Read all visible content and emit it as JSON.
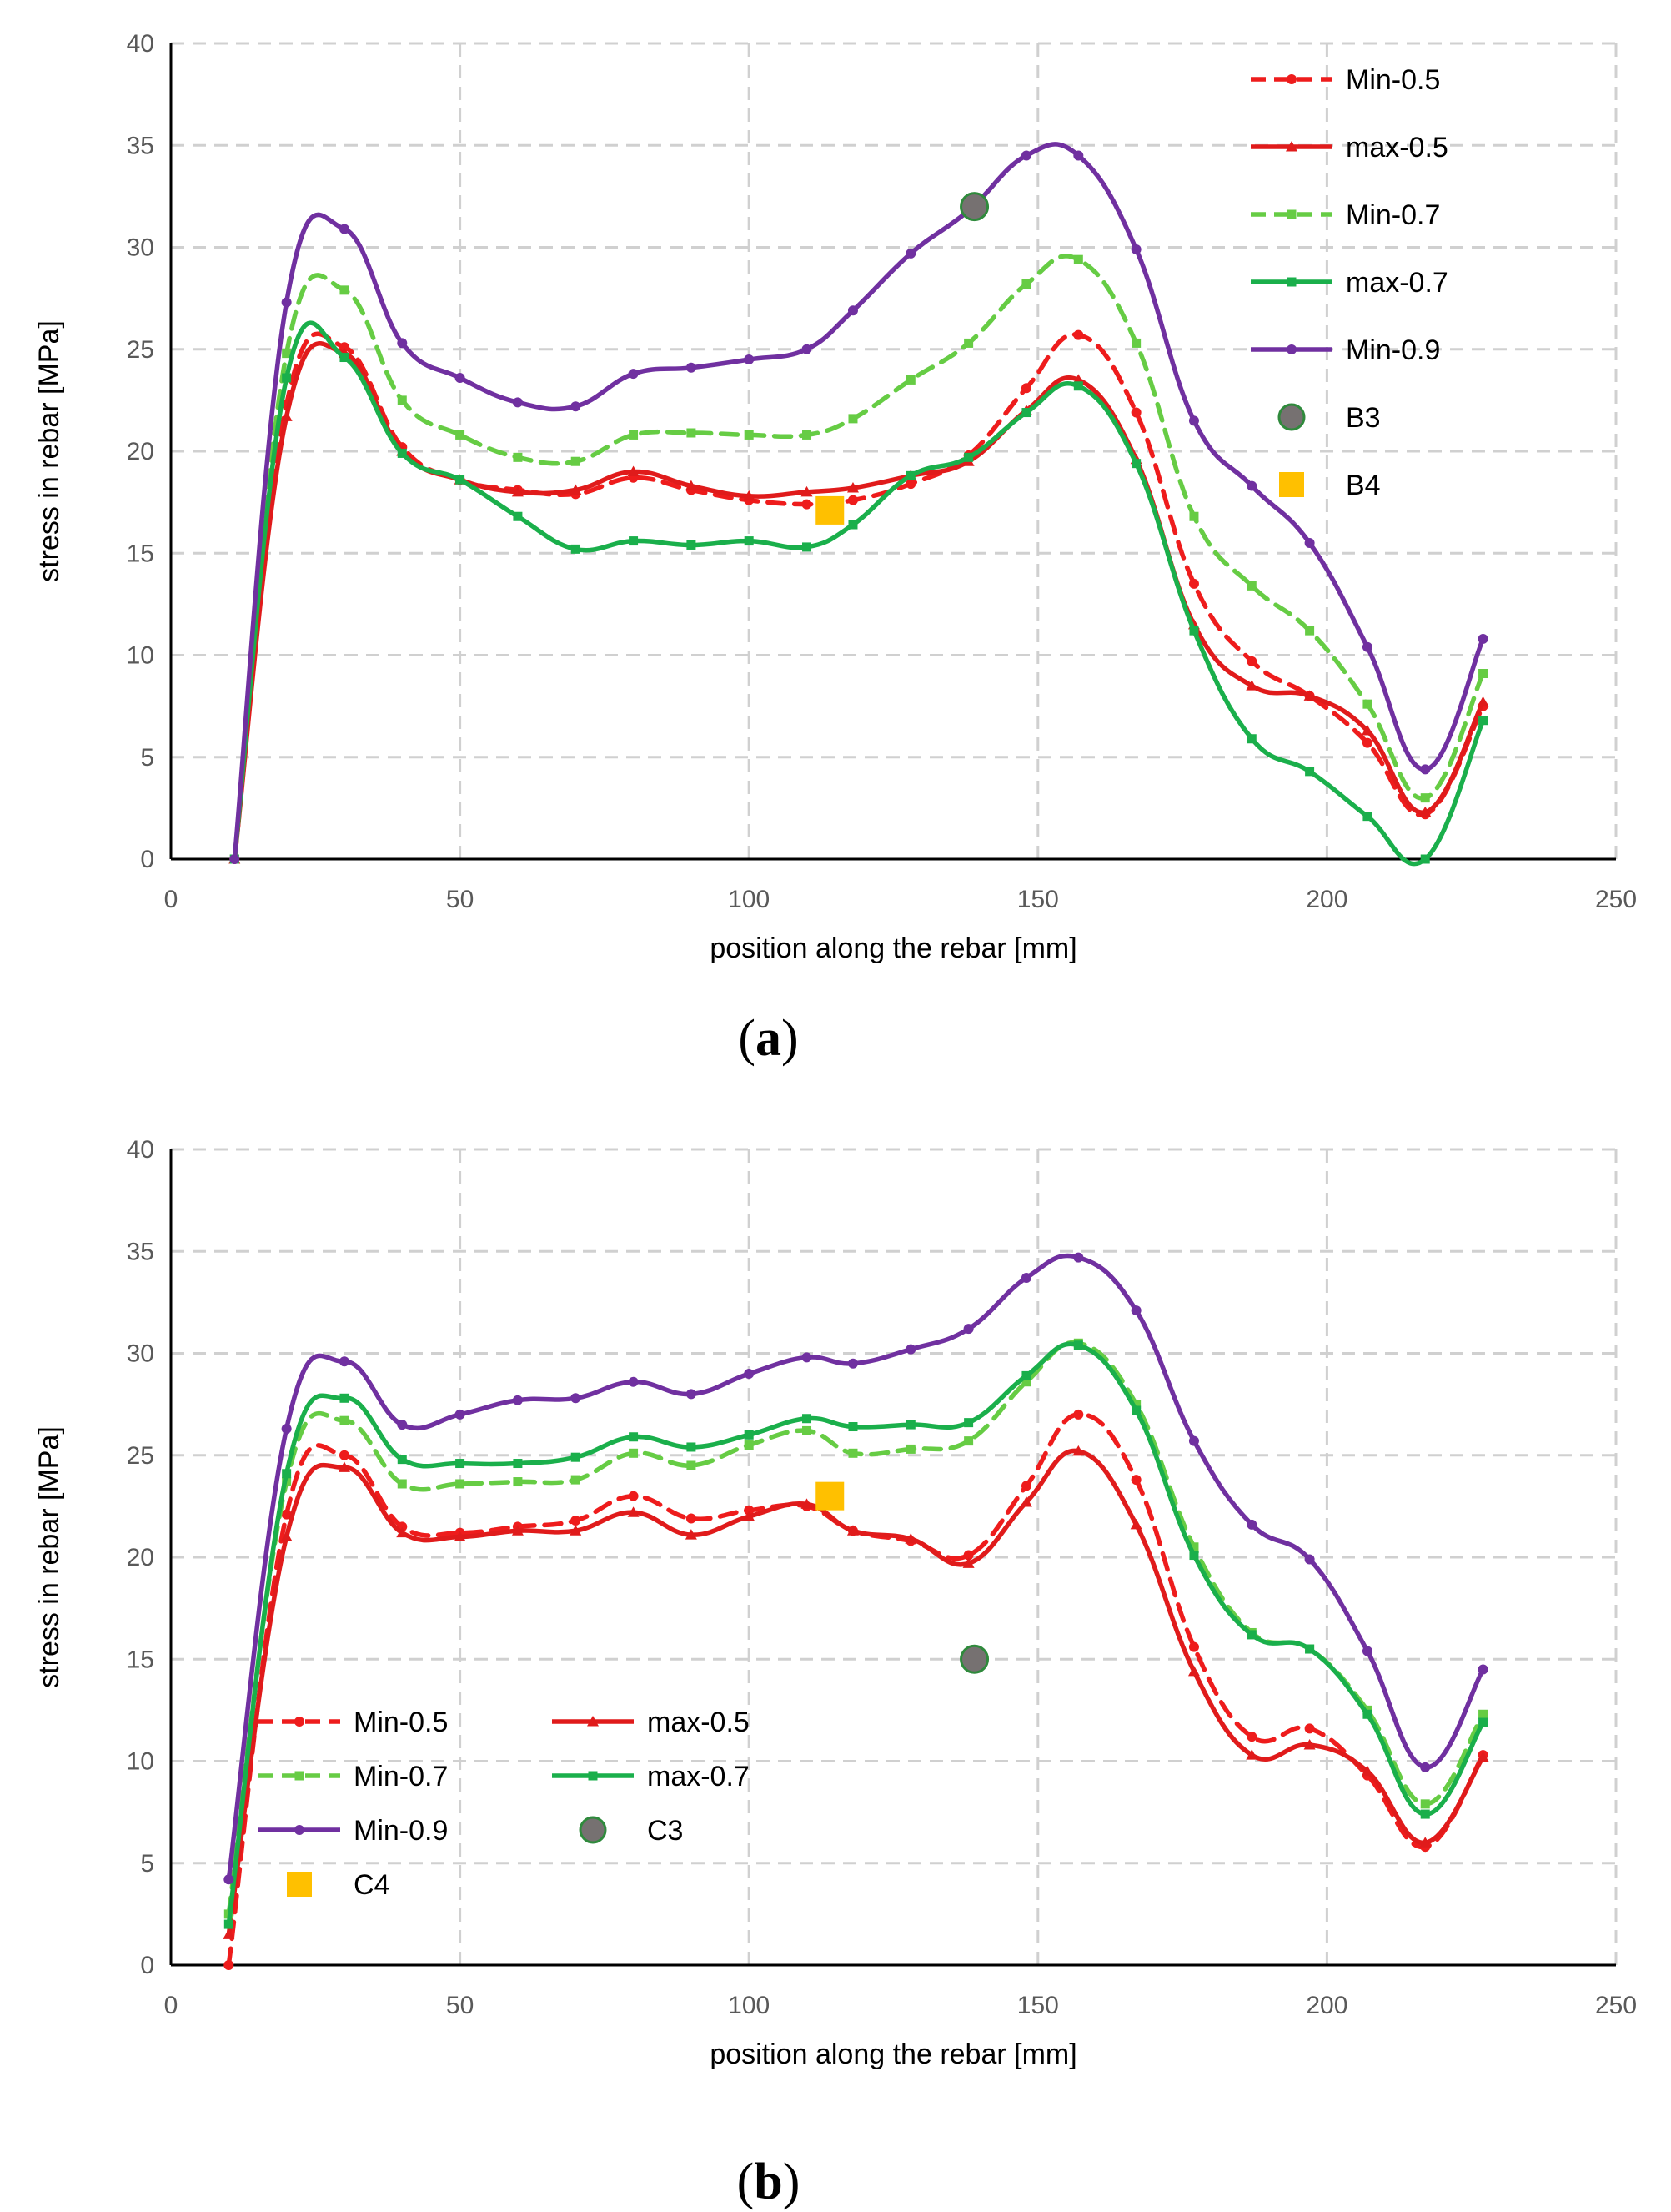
{
  "chart_data": [
    {
      "type": "line",
      "panel_label": "(a)",
      "xlabel": "position along the rebar [mm]",
      "ylabel": "stress in rebar [MPa]",
      "xlim": [
        0,
        250
      ],
      "ylim": [
        0,
        40
      ],
      "xticks": [
        0,
        50,
        100,
        150,
        200,
        250
      ],
      "yticks": [
        0,
        5,
        10,
        15,
        20,
        25,
        30,
        35,
        40
      ],
      "grid": true,
      "legend_placement": "top-right",
      "legend_columns": 1,
      "series": [
        {
          "name": "Min-0.5",
          "color": "#ee1c1c",
          "dash": true,
          "marker": "circle",
          "x": [
            11,
            20,
            30,
            40,
            50,
            60,
            70,
            80,
            90,
            100,
            110,
            118,
            128,
            138,
            148,
            157,
            167,
            177,
            187,
            197,
            207,
            217,
            227
          ],
          "y": [
            0,
            22.3,
            25.1,
            20.2,
            18.6,
            18.1,
            17.9,
            18.7,
            18.1,
            17.6,
            17.4,
            17.6,
            18.4,
            19.8,
            23.1,
            25.7,
            21.9,
            13.5,
            9.7,
            8.0,
            5.7,
            2.2,
            7.5
          ]
        },
        {
          "name": "max-0.5",
          "color": "#e01b1b",
          "dash": false,
          "marker": "triangle",
          "x": [
            11,
            20,
            30,
            40,
            50,
            60,
            70,
            80,
            90,
            100,
            110,
            118,
            128,
            138,
            148,
            157,
            167,
            177,
            187,
            197,
            207,
            217,
            227
          ],
          "y": [
            0,
            21.7,
            24.8,
            20.0,
            18.6,
            18.0,
            18.1,
            19.0,
            18.3,
            17.8,
            18.0,
            18.2,
            18.8,
            19.5,
            22.0,
            23.5,
            19.6,
            11.5,
            8.5,
            8.0,
            6.3,
            2.3,
            7.7
          ]
        },
        {
          "name": "Min-0.7",
          "color": "#66cc44",
          "dash": true,
          "marker": "square",
          "x": [
            11,
            20,
            30,
            40,
            50,
            60,
            70,
            80,
            90,
            100,
            110,
            118,
            128,
            138,
            148,
            157,
            167,
            177,
            187,
            197,
            207,
            217,
            227
          ],
          "y": [
            0,
            24.8,
            27.9,
            22.5,
            20.8,
            19.7,
            19.5,
            20.8,
            20.9,
            20.8,
            20.8,
            21.6,
            23.5,
            25.3,
            28.2,
            29.4,
            25.3,
            16.8,
            13.4,
            11.2,
            7.6,
            3.0,
            9.1
          ]
        },
        {
          "name": "max-0.7",
          "color": "#1aaf4b",
          "dash": false,
          "marker": "square",
          "x": [
            11,
            20,
            30,
            40,
            50,
            60,
            70,
            80,
            90,
            100,
            110,
            118,
            128,
            138,
            148,
            157,
            167,
            177,
            187,
            197,
            207,
            217,
            227
          ],
          "y": [
            0,
            23.6,
            24.6,
            19.9,
            18.6,
            16.8,
            15.2,
            15.6,
            15.4,
            15.6,
            15.3,
            16.4,
            18.8,
            19.7,
            21.9,
            23.2,
            19.4,
            11.2,
            5.9,
            4.3,
            2.1,
            0.0,
            6.8
          ]
        },
        {
          "name": "Min-0.9",
          "color": "#7030a0",
          "dash": false,
          "marker": "circle",
          "x": [
            11,
            20,
            30,
            40,
            50,
            60,
            70,
            80,
            90,
            100,
            110,
            118,
            128,
            138,
            148,
            157,
            167,
            177,
            187,
            197,
            207,
            217,
            227
          ],
          "y": [
            0,
            27.3,
            30.9,
            25.3,
            23.6,
            22.4,
            22.2,
            23.8,
            24.1,
            24.5,
            25.0,
            26.9,
            29.7,
            31.8,
            34.5,
            34.5,
            29.9,
            21.5,
            18.3,
            15.5,
            10.4,
            4.4,
            10.8
          ]
        }
      ],
      "points": [
        {
          "name": "B3",
          "marker": "big-circle",
          "color": "#767171",
          "stroke": "#2f8a3c",
          "x": 139,
          "y": 32.0
        },
        {
          "name": "B4",
          "marker": "big-square",
          "color": "#ffc000",
          "x": 114,
          "y": 17.1
        }
      ]
    },
    {
      "type": "line",
      "panel_label": "(b)",
      "xlabel": "position along the rebar [mm]",
      "ylabel": "stress in rebar [MPa]",
      "xlim": [
        0,
        250
      ],
      "ylim": [
        0,
        40
      ],
      "xticks": [
        0,
        50,
        100,
        150,
        200,
        250
      ],
      "yticks": [
        0,
        5,
        10,
        15,
        20,
        25,
        30,
        35,
        40
      ],
      "grid": true,
      "legend_placement": "bottom-left",
      "legend_columns": 2,
      "series": [
        {
          "name": "Min-0.5",
          "color": "#ee1c1c",
          "dash": true,
          "marker": "circle",
          "x": [
            10,
            20,
            30,
            40,
            50,
            60,
            70,
            80,
            90,
            100,
            110,
            118,
            128,
            138,
            148,
            157,
            167,
            177,
            187,
            197,
            207,
            217,
            227
          ],
          "y": [
            0,
            22.1,
            25.0,
            21.5,
            21.2,
            21.5,
            21.8,
            23.0,
            21.9,
            22.3,
            22.5,
            21.3,
            20.8,
            20.1,
            23.5,
            27.0,
            23.8,
            15.6,
            11.2,
            11.6,
            9.3,
            5.8,
            10.3
          ]
        },
        {
          "name": "max-0.5",
          "color": "#e01b1b",
          "dash": false,
          "marker": "triangle",
          "x": [
            10,
            20,
            30,
            40,
            50,
            60,
            70,
            80,
            90,
            100,
            110,
            118,
            128,
            138,
            148,
            157,
            167,
            177,
            187,
            197,
            207,
            217,
            227
          ],
          "y": [
            1.5,
            21.0,
            24.4,
            21.2,
            21.0,
            21.3,
            21.3,
            22.2,
            21.1,
            22.0,
            22.6,
            21.3,
            20.9,
            19.7,
            22.7,
            25.2,
            21.6,
            14.4,
            10.3,
            10.8,
            9.5,
            6.0,
            10.2
          ]
        },
        {
          "name": "Min-0.7",
          "color": "#66cc44",
          "dash": true,
          "marker": "square",
          "x": [
            10,
            20,
            30,
            40,
            50,
            60,
            70,
            80,
            90,
            100,
            110,
            118,
            128,
            138,
            148,
            157,
            167,
            177,
            187,
            197,
            207,
            217,
            227
          ],
          "y": [
            2.5,
            23.7,
            26.7,
            23.6,
            23.6,
            23.7,
            23.8,
            25.1,
            24.5,
            25.5,
            26.2,
            25.1,
            25.3,
            25.7,
            28.6,
            30.5,
            27.5,
            20.5,
            16.3,
            15.5,
            12.5,
            7.9,
            12.3
          ]
        },
        {
          "name": "max-0.7",
          "color": "#1aaf4b",
          "dash": false,
          "marker": "square",
          "x": [
            10,
            20,
            30,
            40,
            50,
            60,
            70,
            80,
            90,
            100,
            110,
            118,
            128,
            138,
            148,
            157,
            167,
            177,
            187,
            197,
            207,
            217,
            227
          ],
          "y": [
            2.0,
            24.1,
            27.8,
            24.8,
            24.6,
            24.6,
            24.9,
            25.9,
            25.4,
            26.0,
            26.8,
            26.4,
            26.5,
            26.6,
            28.9,
            30.4,
            27.2,
            20.1,
            16.2,
            15.5,
            12.3,
            7.4,
            11.9
          ]
        },
        {
          "name": "Min-0.9",
          "color": "#7030a0",
          "dash": false,
          "marker": "circle",
          "x": [
            10,
            20,
            30,
            40,
            50,
            60,
            70,
            80,
            90,
            100,
            110,
            118,
            128,
            138,
            148,
            157,
            167,
            177,
            187,
            197,
            207,
            217,
            227
          ],
          "y": [
            4.2,
            26.3,
            29.6,
            26.5,
            27.0,
            27.7,
            27.8,
            28.6,
            28.0,
            29.0,
            29.8,
            29.5,
            30.2,
            31.2,
            33.7,
            34.7,
            32.1,
            25.7,
            21.6,
            19.9,
            15.4,
            9.7,
            14.5
          ]
        }
      ],
      "points": [
        {
          "name": "C3",
          "marker": "big-circle",
          "color": "#767171",
          "stroke": "#2f8a3c",
          "x": 139,
          "y": 15.0
        },
        {
          "name": "C4",
          "marker": "big-square",
          "color": "#ffc000",
          "x": 114,
          "y": 23.0
        }
      ]
    }
  ]
}
